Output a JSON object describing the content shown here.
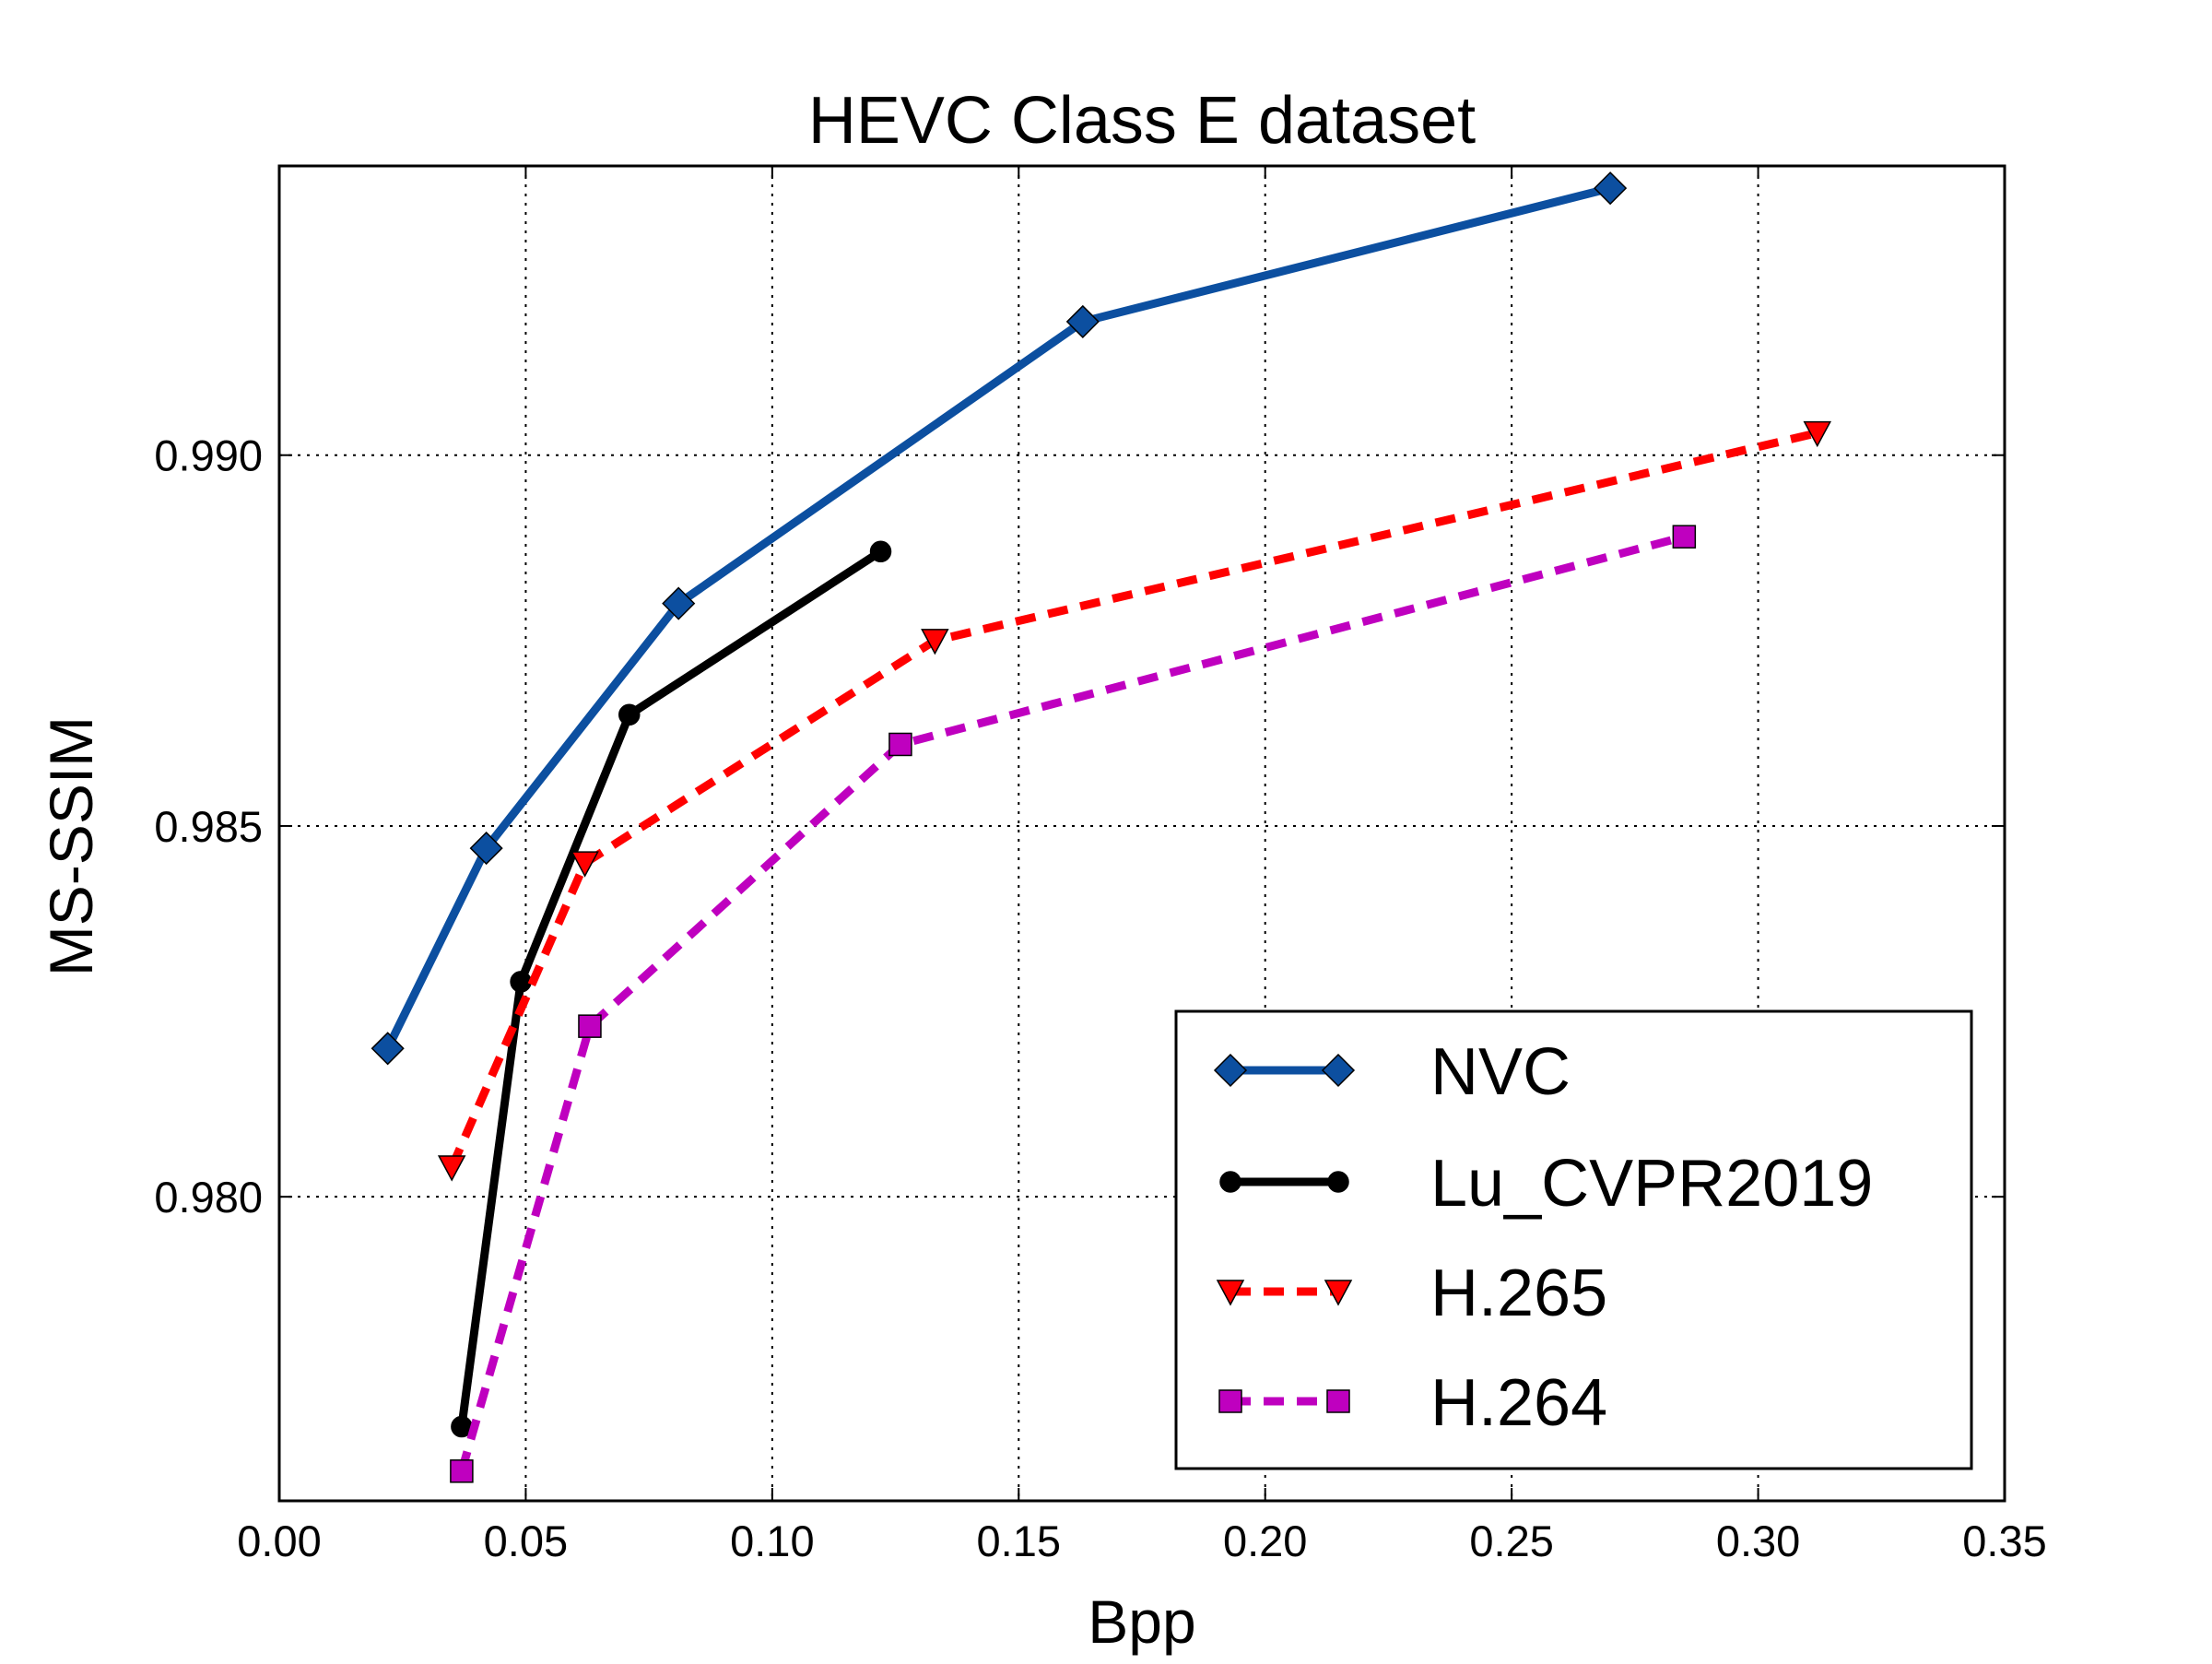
{
  "chart_data": {
    "type": "line",
    "title": "HEVC Class E dataset",
    "xlabel": "Bpp",
    "ylabel": "MS-SSIM",
    "xlim": [
      0.0,
      0.35
    ],
    "ylim": [
      0.9759,
      0.9939
    ],
    "xticks": [
      0.0,
      0.05,
      0.1,
      0.15,
      0.2,
      0.25,
      0.3,
      0.35
    ],
    "xtick_labels": [
      "0.00",
      "0.05",
      "0.10",
      "0.15",
      "0.20",
      "0.25",
      "0.30",
      "0.35"
    ],
    "yticks": [
      0.98,
      0.985,
      0.99
    ],
    "ytick_labels": [
      "0.980",
      "0.985",
      "0.990"
    ],
    "grid": true,
    "legend_position": "bottom-right",
    "series": [
      {
        "name": "NVC",
        "color": "#0c4fa0",
        "marker": "diamond",
        "linestyle": "solid",
        "x": [
          0.022,
          0.042,
          0.081,
          0.163,
          0.27
        ],
        "y": [
          0.982,
          0.9847,
          0.988,
          0.9918,
          0.9936
        ]
      },
      {
        "name": "Lu_CVPR2019",
        "color": "#000000",
        "marker": "circle",
        "linestyle": "solid",
        "x": [
          0.037,
          0.049,
          0.071,
          0.122
        ],
        "y": [
          0.9769,
          0.9829,
          0.9865,
          0.9887
        ]
      },
      {
        "name": "H.265",
        "color": "#ff0000",
        "marker": "triangle-down",
        "linestyle": "dashed",
        "x": [
          0.035,
          0.062,
          0.133,
          0.312
        ],
        "y": [
          0.9804,
          0.9845,
          0.9875,
          0.9903
        ]
      },
      {
        "name": "H.264",
        "color": "#bf00bf",
        "marker": "square",
        "linestyle": "dashed",
        "x": [
          0.037,
          0.063,
          0.126,
          0.285
        ],
        "y": [
          0.9763,
          0.9823,
          0.9861,
          0.9889
        ]
      }
    ]
  }
}
